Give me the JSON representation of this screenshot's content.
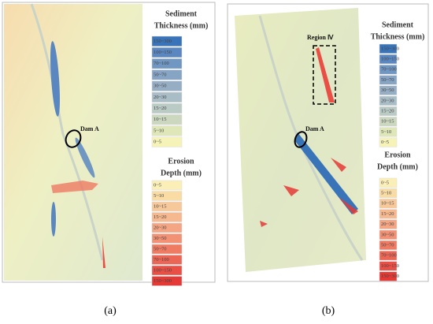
{
  "panels": [
    {
      "caption": "(a)",
      "annotations": [
        "Dam A"
      ],
      "legends": [
        {
          "title": [
            "Sediment",
            "Thickness (mm)"
          ],
          "entries": [
            {
              "label": "150~300",
              "color": "#3a74b8"
            },
            {
              "label": "100~150",
              "color": "#5a87c0"
            },
            {
              "label": "70~100",
              "color": "#7096c2"
            },
            {
              "label": "50~70",
              "color": "#86a4c4"
            },
            {
              "label": "30~50",
              "color": "#96aec4"
            },
            {
              "label": "20~30",
              "color": "#a8bdc6"
            },
            {
              "label": "15~20",
              "color": "#bacac4"
            },
            {
              "label": "10~15",
              "color": "#cbd7bf"
            },
            {
              "label": "5~10",
              "color": "#dfe6b8"
            },
            {
              "label": "0~5",
              "color": "#f6f3b8"
            }
          ]
        },
        {
          "title": [
            "Erosion",
            "Depth (mm)"
          ],
          "entries": [
            {
              "label": "0~5",
              "color": "#fbefb8"
            },
            {
              "label": "5~10",
              "color": "#f8dca3"
            },
            {
              "label": "10~15",
              "color": "#f7c99a"
            },
            {
              "label": "15~20",
              "color": "#f6b98f"
            },
            {
              "label": "20~30",
              "color": "#f4a583"
            },
            {
              "label": "30~50",
              "color": "#f29173"
            },
            {
              "label": "50~70",
              "color": "#ef7b63"
            },
            {
              "label": "70~100",
              "color": "#ec6655"
            },
            {
              "label": "100~150",
              "color": "#e94f45"
            },
            {
              "label": "150~300",
              "color": "#e53935"
            }
          ]
        }
      ]
    },
    {
      "caption": "(b)",
      "annotations": [
        "Dam A",
        "Region Ⅳ"
      ],
      "legends": [
        {
          "title": [
            "Sediment",
            "Thickness (mm)"
          ],
          "entries": [
            {
              "label": "150~300",
              "color": "#3a74b8"
            },
            {
              "label": "100~150",
              "color": "#5a87c0"
            },
            {
              "label": "70~100",
              "color": "#7096c2"
            },
            {
              "label": "50~70",
              "color": "#86a4c4"
            },
            {
              "label": "30~50",
              "color": "#96aec4"
            },
            {
              "label": "20~30",
              "color": "#a8bdc6"
            },
            {
              "label": "15~20",
              "color": "#bacac4"
            },
            {
              "label": "10~15",
              "color": "#cbd7bf"
            },
            {
              "label": "5~10",
              "color": "#dfe6b8"
            },
            {
              "label": "0~5",
              "color": "#f6f3b8"
            }
          ]
        },
        {
          "title": [
            "Erosion",
            "Depth (mm)"
          ],
          "entries": [
            {
              "label": "0~5",
              "color": "#fbefb8"
            },
            {
              "label": "5~10",
              "color": "#f8dca3"
            },
            {
              "label": "10~15",
              "color": "#f7c99a"
            },
            {
              "label": "15~20",
              "color": "#f6b98f"
            },
            {
              "label": "20~30",
              "color": "#f4a583"
            },
            {
              "label": "30~50",
              "color": "#f29173"
            },
            {
              "label": "50~70",
              "color": "#ef7b63"
            },
            {
              "label": "70~100",
              "color": "#ec6655"
            },
            {
              "label": "100~150",
              "color": "#e94f45"
            },
            {
              "label": "150~300",
              "color": "#e53935"
            }
          ]
        }
      ]
    }
  ]
}
